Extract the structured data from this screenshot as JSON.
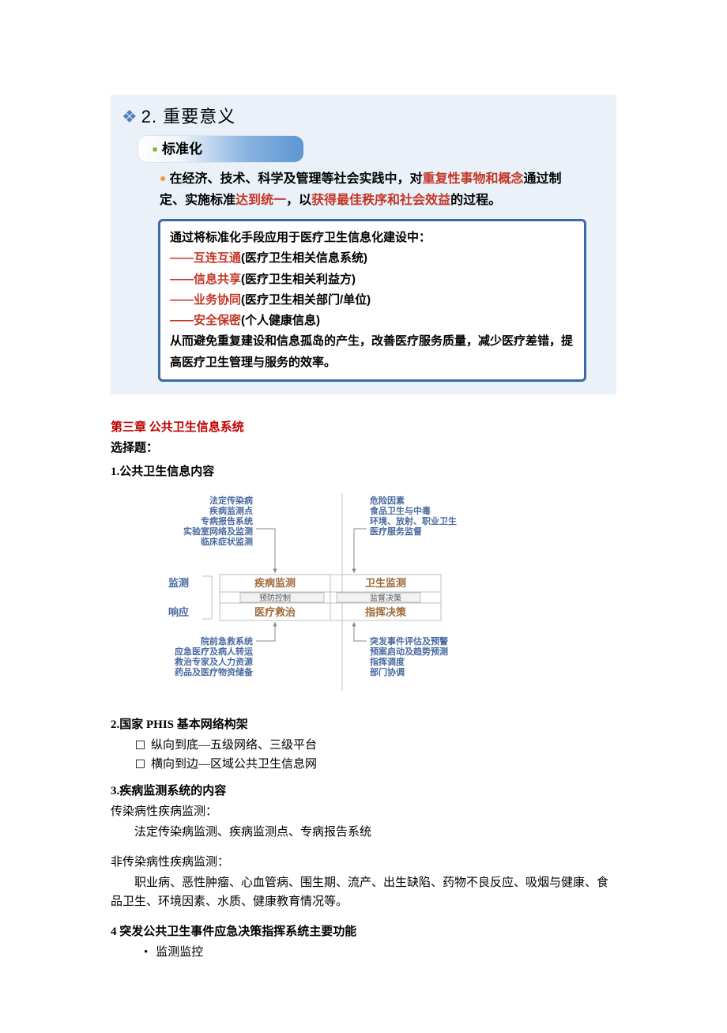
{
  "slide1": {
    "title_number": "2.",
    "title_text": "重要意义",
    "pill": "标准化",
    "para_parts": [
      {
        "t": "在经济、技术、科学及管理等社会实践中，对",
        "c": "#000"
      },
      {
        "t": "重复性事物和概念",
        "c": "#c43626"
      },
      {
        "t": "通过制定、实施标准",
        "c": "#000"
      },
      {
        "t": "达到统一",
        "c": "#c43626"
      },
      {
        "t": "，以",
        "c": "#000"
      },
      {
        "t": "获得最佳秩序和社会效益",
        "c": "#c43626"
      },
      {
        "t": "的过程。",
        "c": "#000"
      }
    ],
    "box": {
      "lead": "通过将标准化手段应用于医疗卫生信息化建设中：",
      "items": [
        {
          "key": "互连互通",
          "desc": "(医疗卫生相关信息系统)"
        },
        {
          "key": "信息共享",
          "desc": "(医疗卫生相关利益方)"
        },
        {
          "key": "业务协同",
          "desc": "(医疗卫生相关部门/单位)"
        },
        {
          "key": "安全保密",
          "desc": "(个人健康信息)"
        }
      ],
      "tail": "从而避免重复建设和信息孤岛的产生，改善医疗服务质量，减少医疗差错，提高医疗卫生管理与服务的效率。"
    }
  },
  "chapter": "第三章  公共卫生信息系统",
  "choice_label": "选择题：",
  "q1_title": "1.公共卫生信息内容",
  "diagram": {
    "colors": {
      "blue": "#4a6aa0",
      "brown": "#9f6a3a",
      "gray": "#888",
      "lightgray": "#bfbfbf",
      "black": "#000"
    },
    "top_left": [
      "法定传染病",
      "疾病监测点",
      "专病报告系统",
      "实验室网络及监测",
      "临床症状监测"
    ],
    "top_right": [
      "危险因素",
      "食品卫生与中毒",
      "环境、放射、职业卫生",
      "医疗服务监督"
    ],
    "bot_left": [
      "院前急救系统",
      "应急医疗及病人转运",
      "救治专家及人力资源",
      "药品及医疗物资储备"
    ],
    "bot_right": [
      "突发事件评估及预警",
      "预案启动及趋势预测",
      "指挥调度",
      "部门协调"
    ],
    "left_labels": [
      "监测",
      "响应"
    ],
    "cells": {
      "tl": "疾病监测",
      "tr": "卫生监测",
      "bl": "医疗救治",
      "br": "指挥决策"
    },
    "mid_left": "预防控制",
    "mid_right": "监督决策"
  },
  "q2": {
    "title": "2.国家 PHIS 基本网络构架",
    "items": [
      "纵向到底—五级网络、三级平台",
      "横向到边—区域公共卫生信息网"
    ]
  },
  "q3": {
    "title": "3.疾病监测系统的内容",
    "s1_label": "传染病性疾病监测：",
    "s1_body": "法定传染病监测、疾病监测点、专病报告系统",
    "s2_label": "非传染病性疾病监测：",
    "s2_body": "职业病、恶性肿瘤、心血管病、围生期、流产、出生缺陷、药物不良反应、吸烟与健康、食品卫生、环境因素、水质、健康教育情况等。"
  },
  "q4": {
    "title": "4 突发公共卫生事件应急决策指挥系统主要功能",
    "items": [
      "监测监控"
    ]
  }
}
